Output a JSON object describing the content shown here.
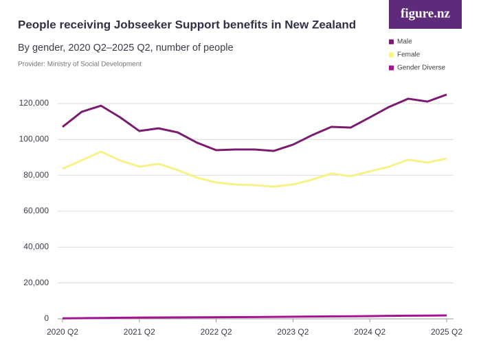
{
  "chart_data": {
    "type": "line",
    "title": "People receiving Jobseeker Support benefits in New Zealand",
    "subtitle": "By gender, 2020 Q2–2025 Q2, number of people",
    "provider": "Provider: Ministry of Social Development",
    "logo": "figure.nz",
    "categories": [
      "2020 Q2",
      null,
      null,
      null,
      "2021 Q2",
      null,
      null,
      null,
      "2022 Q2",
      null,
      null,
      null,
      "2023 Q2",
      null,
      null,
      null,
      "2024 Q2",
      null,
      null,
      null,
      "2025 Q2"
    ],
    "series": [
      {
        "name": "Male",
        "color": "#7a1b6e",
        "values": [
          107000,
          115400,
          118800,
          112300,
          104700,
          106200,
          103900,
          98200,
          94000,
          94400,
          94400,
          93600,
          97100,
          102400,
          107000,
          106600,
          112300,
          118100,
          122700,
          121100,
          125000
        ]
      },
      {
        "name": "Female",
        "color": "#f6f287",
        "values": [
          83700,
          88300,
          93200,
          88300,
          84800,
          86400,
          82900,
          78700,
          76000,
          74900,
          74500,
          73700,
          74900,
          77600,
          81000,
          79500,
          82200,
          84800,
          88700,
          87100,
          89400
        ]
      },
      {
        "name": "Gender Diverse",
        "color": "#a3158f",
        "values": [
          300,
          400,
          500,
          600,
          700,
          750,
          800,
          850,
          900,
          950,
          1000,
          1100,
          1200,
          1300,
          1400,
          1450,
          1550,
          1650,
          1750,
          1800,
          1900
        ]
      }
    ],
    "ylim": [
      0,
      120000
    ],
    "yticks": [
      0,
      {
        "value": 20000,
        "label": "20,000"
      },
      {
        "value": 40000,
        "label": "40,000"
      },
      {
        "value": 60000,
        "label": "60,000"
      },
      {
        "value": 80000,
        "label": "80,000"
      },
      {
        "value": 100000,
        "label": "100,000"
      },
      {
        "value": 120000,
        "label": "120,000"
      }
    ],
    "grid": true
  }
}
